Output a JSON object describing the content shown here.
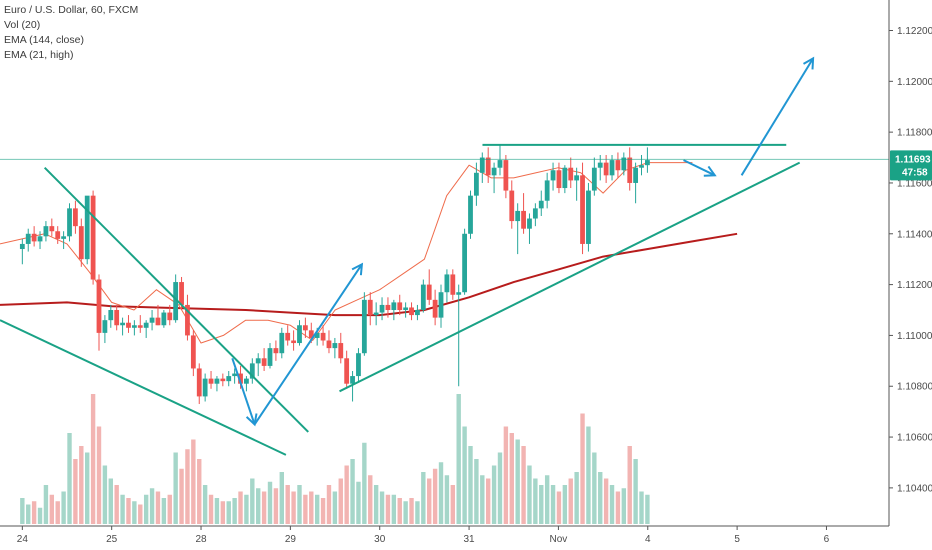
{
  "legend": {
    "symbol": "Euro / U.S. Dollar, 60, FXCM",
    "vol": "Vol (20)",
    "ema_long": "EMA (144, close)",
    "ema_short": "EMA (21, high)"
  },
  "price_tag": {
    "price": "1.11693",
    "countdown": "47:58",
    "value": 1.11693
  },
  "colors": {
    "up": "#26a69a",
    "down": "#ef5350",
    "vol_up": "#a5d6c9",
    "vol_down": "#f2b4b2",
    "ema_long": "#b71c1c",
    "ema_short": "#ef6c4c",
    "trendline": "#1aa286",
    "arrow": "#2196d3",
    "axis": "#555555",
    "tag": "#1aa286"
  },
  "chart_data": {
    "type": "candlestick",
    "title": "Euro / U.S. Dollar, 60, FXCM",
    "y_ticks": [
      1.104,
      1.106,
      1.108,
      1.11,
      1.112,
      1.114,
      1.116,
      1.118,
      1.12,
      1.122
    ],
    "y_tick_labels": [
      "1.10400",
      "1.10600",
      "1.10800",
      "1.11000",
      "1.11200",
      "1.11400",
      "1.11600",
      "1.11800",
      "1.12000",
      "1.12200"
    ],
    "ylim": [
      1.1025,
      1.1232
    ],
    "x_tick_labels": [
      "24",
      "25",
      "28",
      "29",
      "30",
      "31",
      "Nov",
      "4",
      "5",
      "6"
    ],
    "x_tick_index": [
      0,
      20,
      40,
      60,
      80,
      100,
      120,
      140,
      160,
      180
    ],
    "x_index_range": [
      -5,
      194
    ],
    "ema_long": {
      "x": [
        -5,
        10,
        20,
        30,
        40,
        50,
        60,
        70,
        80,
        90,
        100,
        110,
        120,
        130,
        140,
        150,
        160
      ],
      "y": [
        1.1112,
        1.1113,
        1.11115,
        1.1111,
        1.11105,
        1.111,
        1.1109,
        1.1108,
        1.1108,
        1.111,
        1.1115,
        1.1121,
        1.1126,
        1.1131,
        1.1134,
        1.1137,
        1.114
      ]
    },
    "ema_short": {
      "x": [
        -5,
        5,
        10,
        15,
        20,
        25,
        30,
        35,
        40,
        45,
        50,
        55,
        60,
        65,
        70,
        75,
        80,
        85,
        90,
        95,
        100,
        105,
        110,
        115,
        120,
        125,
        130,
        135,
        140,
        145,
        150
      ],
      "y": [
        1.1136,
        1.114,
        1.1136,
        1.1125,
        1.1113,
        1.111,
        1.1118,
        1.1112,
        1.1097,
        1.11,
        1.1106,
        1.1106,
        1.1104,
        1.1098,
        1.111,
        1.1114,
        1.1118,
        1.1124,
        1.113,
        1.1155,
        1.1167,
        1.1162,
        1.1162,
        1.1164,
        1.1166,
        1.1164,
        1.1156,
        1.1165,
        1.1168,
        1.1168,
        1.1168
      ]
    },
    "candles": {
      "spec": "o,h,l,c,v per hour",
      "values": [
        [
          1.1134,
          1.1138,
          1.1128,
          1.1136,
          8
        ],
        [
          1.1136,
          1.1142,
          1.1133,
          1.114,
          6
        ],
        [
          1.114,
          1.1143,
          1.1135,
          1.1137,
          7
        ],
        [
          1.1137,
          1.1141,
          1.1134,
          1.1139,
          5
        ],
        [
          1.1139,
          1.1145,
          1.1137,
          1.1143,
          12
        ],
        [
          1.1143,
          1.1146,
          1.1139,
          1.1141,
          9
        ],
        [
          1.1141,
          1.1143,
          1.1136,
          1.1138,
          7
        ],
        [
          1.1138,
          1.1141,
          1.1134,
          1.1139,
          10
        ],
        [
          1.1139,
          1.1152,
          1.1137,
          1.115,
          28
        ],
        [
          1.115,
          1.1153,
          1.114,
          1.1143,
          20
        ],
        [
          1.1143,
          1.1146,
          1.1127,
          1.113,
          24
        ],
        [
          1.113,
          1.115,
          1.1128,
          1.1155,
          22
        ],
        [
          1.1155,
          1.1157,
          1.112,
          1.1122,
          40
        ],
        [
          1.1122,
          1.1124,
          1.1094,
          1.1101,
          30
        ],
        [
          1.1101,
          1.1108,
          1.1097,
          1.1106,
          18
        ],
        [
          1.1106,
          1.1112,
          1.1103,
          1.111,
          14
        ],
        [
          1.111,
          1.1112,
          1.1102,
          1.1104,
          12
        ],
        [
          1.1104,
          1.1107,
          1.11,
          1.1105,
          9
        ],
        [
          1.1105,
          1.1108,
          1.1101,
          1.1103,
          8
        ],
        [
          1.1103,
          1.1106,
          1.11,
          1.1104,
          7
        ],
        [
          1.1104,
          1.1108,
          1.1101,
          1.1103,
          6
        ],
        [
          1.1103,
          1.1106,
          1.1099,
          1.1105,
          9
        ],
        [
          1.1105,
          1.111,
          1.1102,
          1.1107,
          11
        ],
        [
          1.1107,
          1.1112,
          1.1104,
          1.1104,
          10
        ],
        [
          1.1104,
          1.111,
          1.1103,
          1.1109,
          8
        ],
        [
          1.1109,
          1.1112,
          1.1104,
          1.1106,
          9
        ],
        [
          1.1106,
          1.1124,
          1.1105,
          1.1121,
          22
        ],
        [
          1.1121,
          1.1123,
          1.111,
          1.1112,
          17
        ],
        [
          1.1112,
          1.1116,
          1.1098,
          1.11,
          23
        ],
        [
          1.11,
          1.1102,
          1.1084,
          1.1087,
          26
        ],
        [
          1.1087,
          1.1089,
          1.1073,
          1.1076,
          20
        ],
        [
          1.1076,
          1.1085,
          1.1074,
          1.1083,
          12
        ],
        [
          1.1083,
          1.1086,
          1.1079,
          1.1081,
          9
        ],
        [
          1.1081,
          1.1084,
          1.1078,
          1.1083,
          8
        ],
        [
          1.1083,
          1.1085,
          1.108,
          1.1082,
          7
        ],
        [
          1.1082,
          1.1086,
          1.108,
          1.1084,
          7
        ],
        [
          1.1084,
          1.1087,
          1.1081,
          1.1085,
          8
        ],
        [
          1.1085,
          1.1088,
          1.1079,
          1.1081,
          10
        ],
        [
          1.1081,
          1.1084,
          1.1078,
          1.1083,
          9
        ],
        [
          1.1083,
          1.1091,
          1.1081,
          1.1089,
          14
        ],
        [
          1.1089,
          1.1093,
          1.1084,
          1.1091,
          11
        ],
        [
          1.1091,
          1.1095,
          1.1086,
          1.1088,
          10
        ],
        [
          1.1088,
          1.1097,
          1.1087,
          1.1095,
          13
        ],
        [
          1.1095,
          1.1098,
          1.109,
          1.1093,
          11
        ],
        [
          1.1093,
          1.1103,
          1.1091,
          1.1101,
          16
        ],
        [
          1.1101,
          1.1104,
          1.1096,
          1.1098,
          12
        ],
        [
          1.1098,
          1.1102,
          1.1094,
          1.1097,
          10
        ],
        [
          1.1097,
          1.1106,
          1.1096,
          1.1104,
          12
        ],
        [
          1.1104,
          1.1107,
          1.1099,
          1.1102,
          9
        ],
        [
          1.1102,
          1.1105,
          1.1097,
          1.1099,
          10
        ],
        [
          1.1099,
          1.1103,
          1.1096,
          1.1101,
          9
        ],
        [
          1.1101,
          1.1104,
          1.1096,
          1.1098,
          8
        ],
        [
          1.1098,
          1.1102,
          1.1093,
          1.1095,
          12
        ],
        [
          1.1095,
          1.1099,
          1.1091,
          1.1097,
          10
        ],
        [
          1.1097,
          1.1101,
          1.1089,
          1.1091,
          14
        ],
        [
          1.1091,
          1.1094,
          1.1079,
          1.1081,
          18
        ],
        [
          1.1081,
          1.1086,
          1.1074,
          1.1084,
          20
        ],
        [
          1.1084,
          1.1095,
          1.1082,
          1.1093,
          13
        ],
        [
          1.1093,
          1.1117,
          1.1092,
          1.1114,
          25
        ],
        [
          1.1114,
          1.1117,
          1.1104,
          1.1108,
          15
        ],
        [
          1.1108,
          1.1113,
          1.1104,
          1.1109,
          12
        ],
        [
          1.1109,
          1.1115,
          1.1106,
          1.1112,
          10
        ],
        [
          1.1112,
          1.1115,
          1.1107,
          1.111,
          9
        ],
        [
          1.111,
          1.1114,
          1.1106,
          1.1113,
          9
        ],
        [
          1.1113,
          1.1116,
          1.1108,
          1.111,
          8
        ],
        [
          1.111,
          1.1113,
          1.1107,
          1.1111,
          7
        ],
        [
          1.1111,
          1.1113,
          1.1106,
          1.1108,
          8
        ],
        [
          1.1108,
          1.1112,
          1.1106,
          1.111,
          7
        ],
        [
          1.111,
          1.1122,
          1.1109,
          1.112,
          16
        ],
        [
          1.112,
          1.1126,
          1.1112,
          1.1114,
          14
        ],
        [
          1.1114,
          1.1118,
          1.1104,
          1.1107,
          17
        ],
        [
          1.1107,
          1.112,
          1.1103,
          1.1117,
          19
        ],
        [
          1.1117,
          1.1126,
          1.1113,
          1.1124,
          15
        ],
        [
          1.1124,
          1.1126,
          1.1114,
          1.1116,
          12
        ],
        [
          1.1116,
          1.112,
          1.108,
          1.1117,
          40
        ],
        [
          1.1117,
          1.1142,
          1.1116,
          1.114,
          30
        ],
        [
          1.114,
          1.1157,
          1.1138,
          1.1155,
          24
        ],
        [
          1.1155,
          1.1168,
          1.1151,
          1.1164,
          20
        ],
        [
          1.1164,
          1.1172,
          1.116,
          1.117,
          15
        ],
        [
          1.117,
          1.1174,
          1.116,
          1.1163,
          14
        ],
        [
          1.1163,
          1.1168,
          1.1156,
          1.1166,
          18
        ],
        [
          1.1166,
          1.1175,
          1.1163,
          1.1169,
          22
        ],
        [
          1.1169,
          1.1171,
          1.1154,
          1.1157,
          30
        ],
        [
          1.1157,
          1.1161,
          1.1142,
          1.1145,
          28
        ],
        [
          1.1145,
          1.1152,
          1.1132,
          1.1149,
          26
        ],
        [
          1.1149,
          1.1156,
          1.114,
          1.1142,
          24
        ],
        [
          1.1142,
          1.1148,
          1.1136,
          1.1146,
          18
        ],
        [
          1.1146,
          1.1152,
          1.1143,
          1.115,
          14
        ],
        [
          1.115,
          1.1157,
          1.1147,
          1.1153,
          12
        ],
        [
          1.1153,
          1.1164,
          1.115,
          1.1161,
          15
        ],
        [
          1.1161,
          1.1168,
          1.1157,
          1.1165,
          12
        ],
        [
          1.1165,
          1.1168,
          1.1156,
          1.1158,
          10
        ],
        [
          1.1158,
          1.1167,
          1.1156,
          1.1166,
          12
        ],
        [
          1.1166,
          1.117,
          1.1158,
          1.1161,
          14
        ],
        [
          1.1161,
          1.1166,
          1.1153,
          1.1163,
          16
        ],
        [
          1.1163,
          1.1168,
          1.1132,
          1.1136,
          34
        ],
        [
          1.1136,
          1.116,
          1.1133,
          1.1157,
          30
        ],
        [
          1.1157,
          1.117,
          1.1155,
          1.1166,
          22
        ],
        [
          1.1166,
          1.1171,
          1.1161,
          1.1168,
          16
        ],
        [
          1.1168,
          1.1171,
          1.116,
          1.1163,
          14
        ],
        [
          1.1163,
          1.1171,
          1.1161,
          1.1169,
          12
        ],
        [
          1.1169,
          1.1172,
          1.1162,
          1.1165,
          10
        ],
        [
          1.1165,
          1.1172,
          1.1163,
          1.117,
          11
        ],
        [
          1.117,
          1.1174,
          1.1157,
          1.116,
          24
        ],
        [
          1.116,
          1.1168,
          1.1152,
          1.1166,
          20
        ],
        [
          1.1166,
          1.1171,
          1.1163,
          1.1167,
          10
        ],
        [
          1.1167,
          1.1174,
          1.1164,
          1.1169,
          9
        ]
      ]
    },
    "candle_x_start": 0,
    "candle_x_step": 1.32,
    "annotations": {
      "trendlines": [
        {
          "x1": 5,
          "y1": 1.1166,
          "x2": 64,
          "y2": 1.1062
        },
        {
          "x1": -5,
          "y1": 1.1106,
          "x2": 59,
          "y2": 1.1053
        },
        {
          "x1": 71,
          "y1": 1.1078,
          "x2": 174,
          "y2": 1.1168
        },
        {
          "x1": 103,
          "y1": 1.1175,
          "x2": 171,
          "y2": 1.1175
        }
      ],
      "arrows": [
        {
          "points": [
            [
              47,
              1.1091
            ],
            [
              52,
              1.1065
            ]
          ]
        },
        {
          "points": [
            [
              52,
              1.1065
            ],
            [
              76,
              1.1128
            ]
          ]
        },
        {
          "points": [
            [
              148,
              1.1169
            ],
            [
              155,
              1.1163
            ]
          ]
        },
        {
          "points": [
            [
              161,
              1.1163
            ],
            [
              177,
              1.1209
            ]
          ]
        }
      ]
    }
  }
}
